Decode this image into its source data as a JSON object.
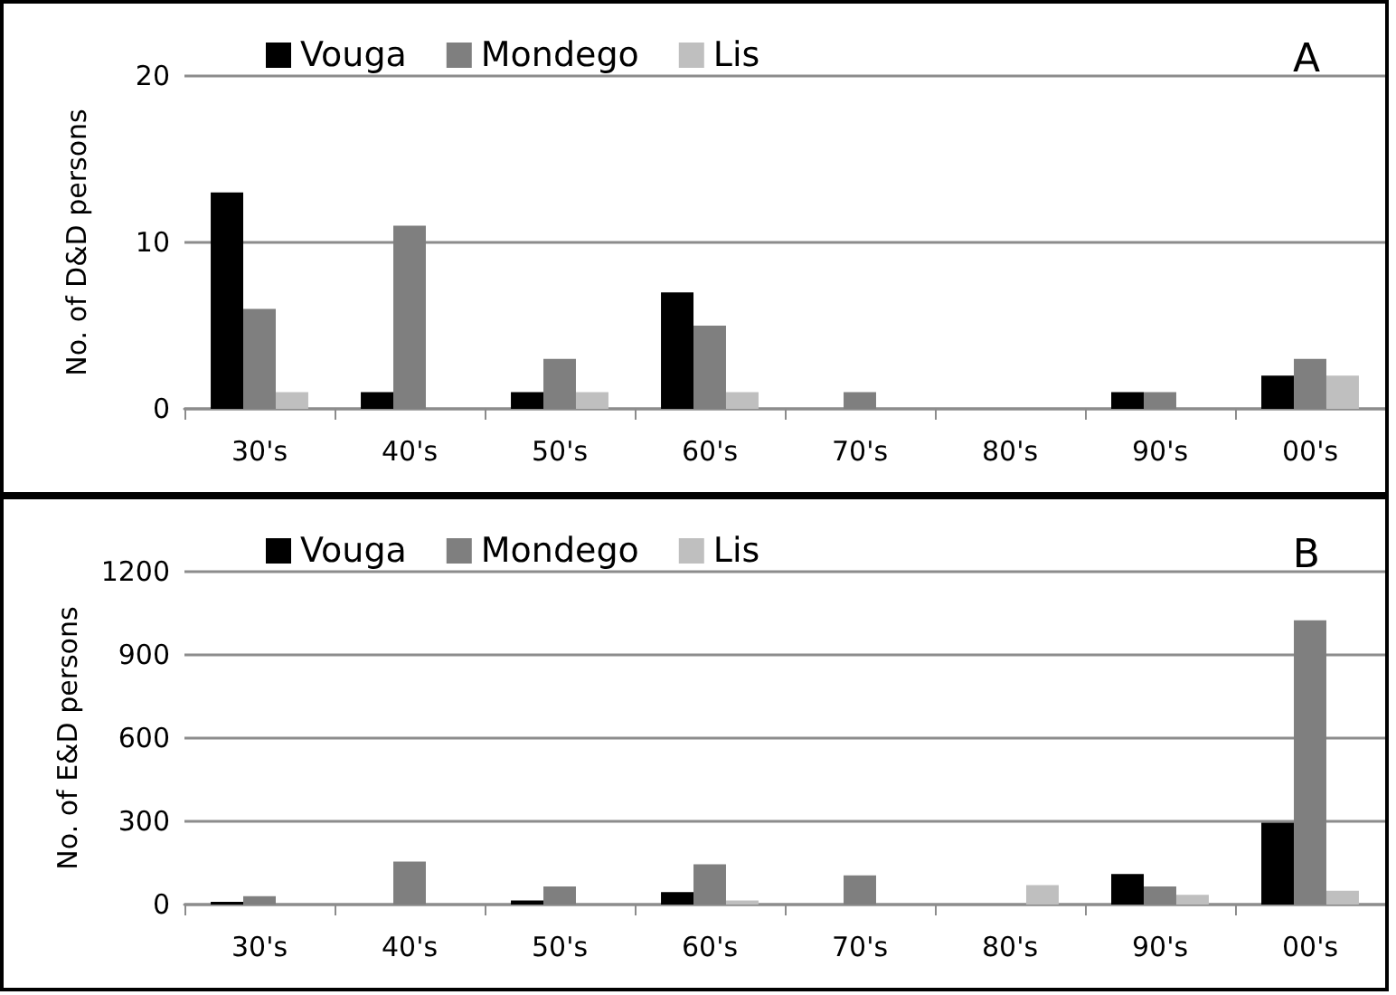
{
  "chart_data": [
    {
      "type": "bar",
      "ylabel": "No. of D&D persons",
      "categories": [
        "30's",
        "40's",
        "50's",
        "60's",
        "70's",
        "80's",
        "90's",
        "00's"
      ],
      "series": [
        {
          "name": "Vouga",
          "color": "#000000",
          "values": [
            13,
            1,
            1,
            7,
            0,
            0,
            1,
            2
          ]
        },
        {
          "name": "Mondego",
          "color": "#7f7f7f",
          "values": [
            6,
            11,
            3,
            5,
            1,
            0,
            1,
            3
          ]
        },
        {
          "name": "Lis",
          "color": "#bfbfbf",
          "values": [
            1,
            0,
            1,
            1,
            0,
            0,
            0,
            2
          ]
        }
      ],
      "ylim": [
        0,
        20
      ],
      "yticks": [
        0,
        10,
        20
      ],
      "grid": "y",
      "legend": "top left",
      "annotations": [
        "A"
      ]
    },
    {
      "type": "bar",
      "ylabel": "No. of E&D persons",
      "categories": [
        "30's",
        "40's",
        "50's",
        "60's",
        "70's",
        "80's",
        "90's",
        "00's"
      ],
      "series": [
        {
          "name": "Vouga",
          "color": "#000000",
          "values": [
            10,
            0,
            15,
            45,
            0,
            0,
            110,
            295
          ]
        },
        {
          "name": "Mondego",
          "color": "#7f7f7f",
          "values": [
            30,
            155,
            65,
            145,
            105,
            0,
            65,
            1025
          ]
        },
        {
          "name": "Lis",
          "color": "#bfbfbf",
          "values": [
            0,
            0,
            0,
            15,
            0,
            70,
            35,
            50
          ]
        }
      ],
      "ylim": [
        0,
        1200
      ],
      "yticks": [
        0,
        300,
        600,
        900,
        1200
      ],
      "grid": "y",
      "legend": "top left",
      "annotations": [
        "B"
      ]
    }
  ]
}
